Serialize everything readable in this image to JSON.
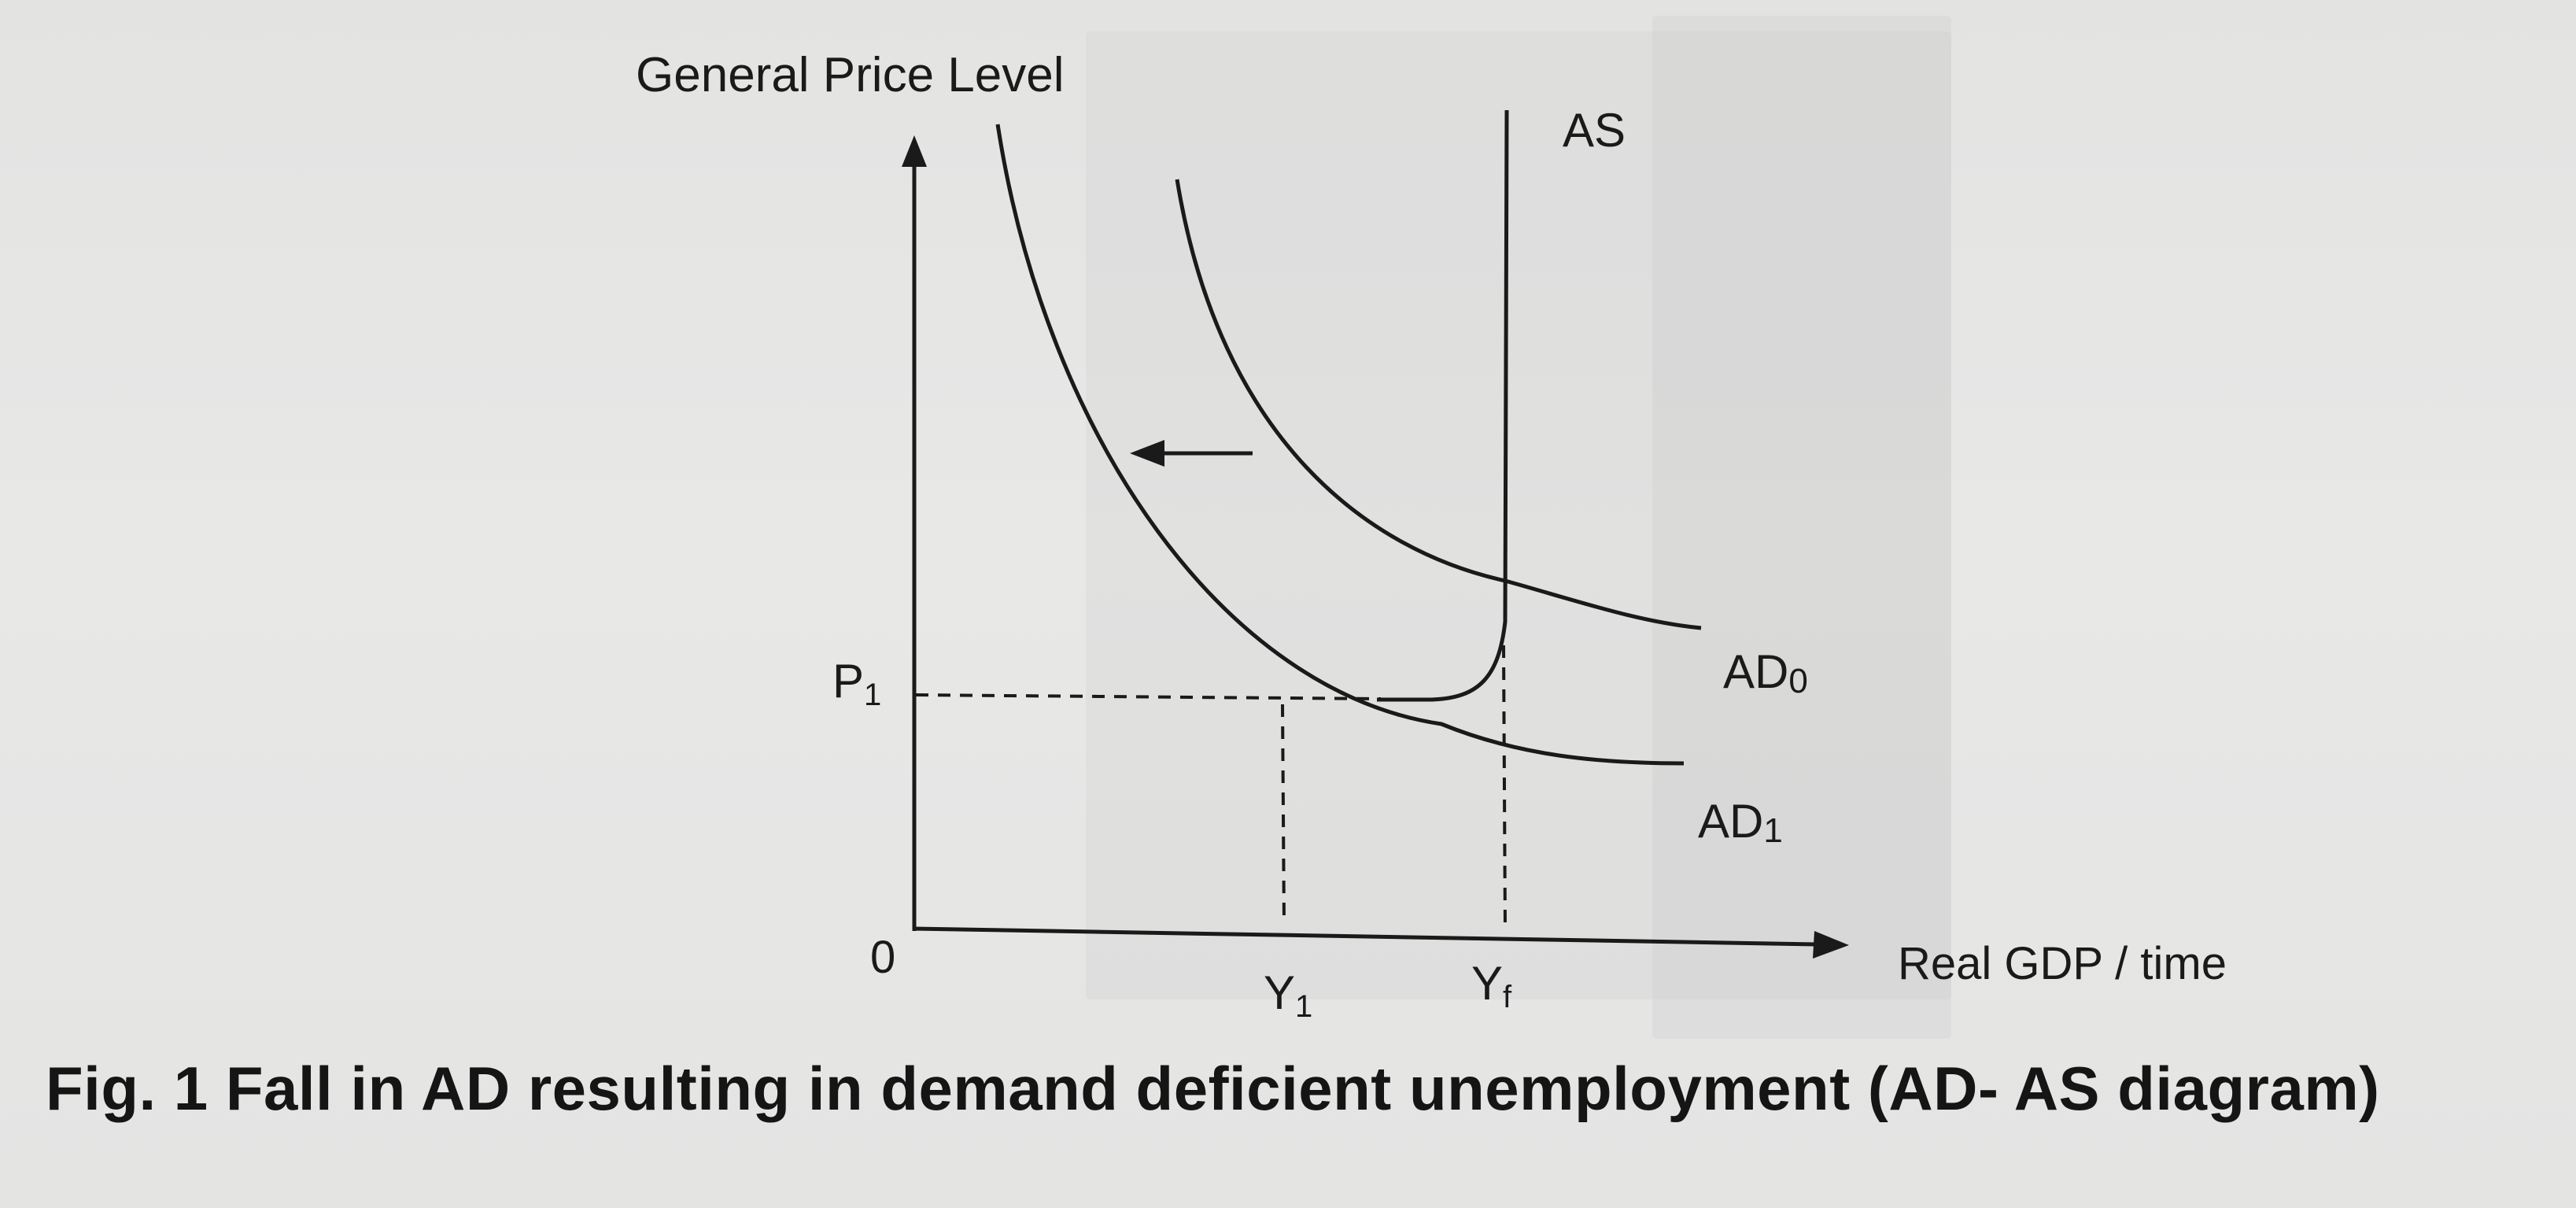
{
  "diagram": {
    "y_axis_label": "General Price Level",
    "x_axis_label": "Real GDP / time",
    "origin_label": "0",
    "price_label": {
      "base": "P",
      "sub": "1"
    },
    "y1_label": {
      "base": "Y",
      "sub": "1"
    },
    "yf_label": {
      "base": "Y",
      "sub": "f"
    },
    "as_label": "AS",
    "ad0_label": {
      "base": "AD",
      "sub": "0"
    },
    "ad1_label": {
      "base": "AD",
      "sub": "1"
    }
  },
  "caption": "Fig. 1 Fall in AD resulting in demand deficient unemployment (AD- AS diagram)"
}
